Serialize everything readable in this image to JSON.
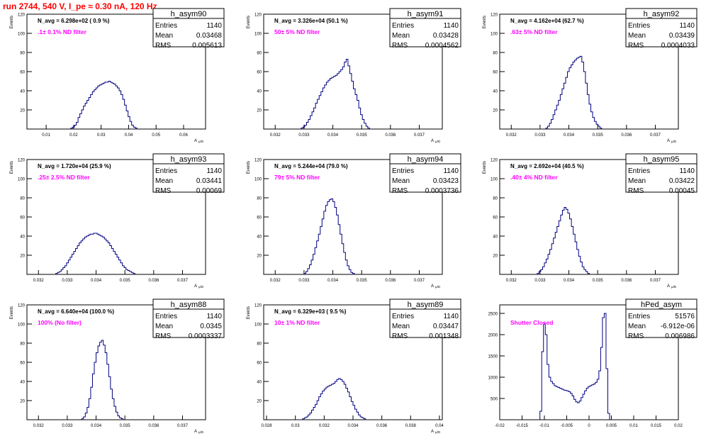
{
  "page_title": "run 2744,   540 V, I_pe ≈ 0.30 nA, 120 Hz",
  "colors": {
    "title": "#ff0000",
    "histogram": "#000080",
    "annotation": "#ff00ff",
    "axis": "#000000"
  },
  "chart_data": [
    {
      "type": "histogram",
      "ylabel": "Events",
      "xlabel": "A_{μ/D}",
      "ylim": [
        0,
        120
      ],
      "xlim": [
        0.003,
        0.068
      ],
      "yticks": [
        "20",
        "40",
        "60",
        "80",
        "100",
        "120"
      ],
      "xticks": [
        [
          "0.01",
          0.01
        ],
        [
          "0.02",
          0.02
        ],
        [
          "0.03",
          0.03
        ],
        [
          "0.04",
          0.04
        ],
        [
          "0.05",
          0.05
        ],
        [
          "0.06",
          0.06
        ]
      ],
      "navg": "N_avg = 6.298e+02 ( 0.9 %)",
      "annotation": ".1± 0.1% ND filter",
      "stats": {
        "name": "h_asym90",
        "rows": [
          [
            "Entries",
            "1140"
          ],
          [
            "Mean",
            "0.03468"
          ],
          [
            "RMS",
            "0.005613"
          ]
        ]
      },
      "bins": {
        "start": 0.019,
        "width": 0.00065,
        "values": [
          1,
          2,
          4,
          7,
          12,
          16,
          20,
          24,
          27,
          30,
          33,
          36,
          39,
          41,
          43,
          45,
          46,
          47,
          48,
          49,
          49,
          50,
          49,
          48,
          47,
          45,
          43,
          40,
          36,
          31,
          25,
          19,
          13,
          8,
          4,
          2,
          1
        ]
      }
    },
    {
      "type": "histogram",
      "ylabel": "Events",
      "xlabel": "A_{μ/D}",
      "ylim": [
        0,
        120
      ],
      "xlim": [
        0.0316,
        0.0378
      ],
      "yticks": [
        "20",
        "40",
        "60",
        "80",
        "100",
        "120"
      ],
      "xticks": [
        [
          "0.032",
          0.032
        ],
        [
          "0.033",
          0.033
        ],
        [
          "0.034",
          0.034
        ],
        [
          "0.035",
          0.035
        ],
        [
          "0.036",
          0.036
        ],
        [
          "0.037",
          0.037
        ]
      ],
      "navg": "N_avg = 3.326e+04 (50.1 %)",
      "annotation": "50± 5% ND filter",
      "stats": {
        "name": "h_asym91",
        "rows": [
          [
            "Entries",
            "1140"
          ],
          [
            "Mean",
            "0.03428"
          ],
          [
            "RMS",
            "0.0004562"
          ]
        ]
      },
      "bins": {
        "start": 0.0329,
        "width": 6.25e-05,
        "values": [
          1,
          2,
          4,
          7,
          10,
          14,
          18,
          22,
          27,
          31,
          35,
          39,
          43,
          46,
          49,
          51,
          53,
          54,
          55,
          56,
          58,
          60,
          62,
          65,
          70,
          73,
          66,
          58,
          50,
          42,
          36,
          30,
          22,
          15,
          10,
          6,
          3,
          1
        ]
      }
    },
    {
      "type": "histogram",
      "ylabel": "Events",
      "xlabel": "A_{μ/D}",
      "ylim": [
        0,
        120
      ],
      "xlim": [
        0.0316,
        0.0378
      ],
      "yticks": [
        "20",
        "40",
        "60",
        "80",
        "100",
        "120"
      ],
      "xticks": [
        [
          "0.032",
          0.032
        ],
        [
          "0.033",
          0.033
        ],
        [
          "0.034",
          0.034
        ],
        [
          "0.035",
          0.035
        ],
        [
          "0.036",
          0.036
        ],
        [
          "0.037",
          0.037
        ]
      ],
      "navg": "N_avg = 4.162e+04 (62.7 %)",
      "annotation": ".63± 5% ND filter",
      "stats": {
        "name": "h_asym92",
        "rows": [
          [
            "Entries",
            "1140"
          ],
          [
            "Mean",
            "0.03439"
          ],
          [
            "RMS",
            "0.0004033"
          ]
        ]
      },
      "bins": {
        "start": 0.0332,
        "width": 6.25e-05,
        "values": [
          1,
          3,
          6,
          10,
          15,
          20,
          25,
          30,
          36,
          42,
          48,
          54,
          60,
          64,
          67,
          70,
          72,
          74,
          75,
          76,
          70,
          60,
          48,
          36,
          26,
          18,
          12,
          8,
          5,
          3,
          1
        ]
      }
    },
    {
      "type": "histogram",
      "ylabel": "Events",
      "xlabel": "A_{μ/D}",
      "ylim": [
        0,
        120
      ],
      "xlim": [
        0.0316,
        0.0378
      ],
      "yticks": [
        "20",
        "40",
        "60",
        "80",
        "100",
        "120"
      ],
      "xticks": [
        [
          "0.032",
          0.032
        ],
        [
          "0.033",
          0.033
        ],
        [
          "0.034",
          0.034
        ],
        [
          "0.035",
          0.035
        ],
        [
          "0.036",
          0.036
        ],
        [
          "0.037",
          0.037
        ]
      ],
      "navg": "N_avg = 1.720e+04 (25.9 %)",
      "annotation": ".25± 2.5% ND filter",
      "stats": {
        "name": "h_asym93",
        "rows": [
          [
            "Entries",
            "1140"
          ],
          [
            "Mean",
            "0.03441"
          ],
          [
            "RMS",
            "0.00069"
          ]
        ]
      },
      "bins": {
        "start": 0.0326,
        "width": 6.25e-05,
        "values": [
          1,
          2,
          3,
          5,
          7,
          9,
          12,
          15,
          18,
          21,
          24,
          27,
          30,
          33,
          35,
          37,
          39,
          40,
          41,
          42,
          42,
          43,
          43,
          42,
          41,
          40,
          39,
          37,
          35,
          33,
          30,
          27,
          24,
          21,
          18,
          15,
          12,
          9,
          7,
          5,
          4,
          3,
          2,
          1
        ]
      }
    },
    {
      "type": "histogram",
      "ylabel": "Events",
      "xlabel": "A_{μ/D}",
      "ylim": [
        0,
        120
      ],
      "xlim": [
        0.0316,
        0.0378
      ],
      "yticks": [
        "20",
        "40",
        "60",
        "80",
        "100",
        "120"
      ],
      "xticks": [
        [
          "0.032",
          0.032
        ],
        [
          "0.033",
          0.033
        ],
        [
          "0.034",
          0.034
        ],
        [
          "0.035",
          0.035
        ],
        [
          "0.036",
          0.036
        ],
        [
          "0.037",
          0.037
        ]
      ],
      "navg": "N_avg = 5.244e+04 (79.0 %)",
      "annotation": "79± 5% ND filter",
      "stats": {
        "name": "h_asym94",
        "rows": [
          [
            "Entries",
            "1140"
          ],
          [
            "Mean",
            "0.03423"
          ],
          [
            "RMS",
            "0.0003736"
          ]
        ]
      },
      "bins": {
        "start": 0.033,
        "width": 6.25e-05,
        "values": [
          1,
          3,
          6,
          10,
          15,
          21,
          28,
          35,
          42,
          50,
          58,
          66,
          72,
          76,
          78,
          79,
          76,
          70,
          62,
          52,
          42,
          32,
          23,
          15,
          9,
          5,
          2,
          1
        ]
      }
    },
    {
      "type": "histogram",
      "ylabel": "Events",
      "xlabel": "A_{μ/D}",
      "ylim": [
        0,
        120
      ],
      "xlim": [
        0.0316,
        0.0378
      ],
      "yticks": [
        "20",
        "40",
        "60",
        "80",
        "100",
        "120"
      ],
      "xticks": [
        [
          "0.032",
          0.032
        ],
        [
          "0.033",
          0.033
        ],
        [
          "0.034",
          0.034
        ],
        [
          "0.035",
          0.035
        ],
        [
          "0.036",
          0.036
        ],
        [
          "0.037",
          0.037
        ]
      ],
      "navg": "N_avg = 2.692e+04 (40.5 %)",
      "annotation": ".40± 4% ND filter",
      "stats": {
        "name": "h_asym95",
        "rows": [
          [
            "Entries",
            "1140"
          ],
          [
            "Mean",
            "0.03422"
          ],
          [
            "RMS",
            "0.00045"
          ]
        ]
      },
      "bins": {
        "start": 0.0329,
        "width": 6.25e-05,
        "values": [
          1,
          3,
          5,
          8,
          12,
          16,
          21,
          26,
          32,
          38,
          44,
          50,
          56,
          62,
          67,
          70,
          68,
          64,
          58,
          50,
          42,
          34,
          26,
          19,
          13,
          8,
          5,
          3,
          1
        ]
      }
    },
    {
      "type": "histogram",
      "ylabel": "Events",
      "xlabel": "A_{μ/D}",
      "ylim": [
        0,
        120
      ],
      "xlim": [
        0.0316,
        0.0378
      ],
      "yticks": [
        "20",
        "40",
        "60",
        "80",
        "100",
        "120"
      ],
      "xticks": [
        [
          "0.032",
          0.032
        ],
        [
          "0.033",
          0.033
        ],
        [
          "0.034",
          0.034
        ],
        [
          "0.035",
          0.035
        ],
        [
          "0.036",
          0.036
        ],
        [
          "0.037",
          0.037
        ]
      ],
      "navg": "N_avg = 6.640e+04 (100.0 %)",
      "annotation": "100% (No filter)",
      "stats": {
        "name": "h_asym88",
        "rows": [
          [
            "Entries",
            "1140"
          ],
          [
            "Mean",
            "0.0345"
          ],
          [
            "RMS",
            "0.0003337"
          ]
        ]
      },
      "bins": {
        "start": 0.0335,
        "width": 6.25e-05,
        "values": [
          1,
          3,
          7,
          13,
          22,
          34,
          48,
          60,
          70,
          77,
          81,
          83,
          78,
          70,
          58,
          45,
          32,
          22,
          14,
          8,
          4,
          2,
          1
        ]
      }
    },
    {
      "type": "histogram",
      "ylabel": "Events",
      "xlabel": "A_{μ/D}",
      "ylim": [
        0,
        120
      ],
      "xlim": [
        0.0278,
        0.0402
      ],
      "yticks": [
        "20",
        "40",
        "60",
        "80",
        "100",
        "120"
      ],
      "xticks": [
        [
          "0.028",
          0.028
        ],
        [
          "0.03",
          0.03
        ],
        [
          "0.032",
          0.032
        ],
        [
          "0.034",
          0.034
        ],
        [
          "0.036",
          0.036
        ],
        [
          "0.038",
          0.038
        ],
        [
          "0.04",
          0.04
        ]
      ],
      "navg": "N_avg = 6.329e+03 ( 9.5 %)",
      "annotation": "10± 1% ND filter",
      "stats": {
        "name": "h_asym89",
        "rows": [
          [
            "Entries",
            "1140"
          ],
          [
            "Mean",
            "0.03447"
          ],
          [
            "RMS",
            "0.001348"
          ]
        ]
      },
      "bins": {
        "start": 0.0305,
        "width": 0.000125,
        "values": [
          1,
          2,
          3,
          5,
          7,
          10,
          13,
          16,
          20,
          24,
          27,
          30,
          32,
          34,
          35,
          36,
          37,
          38,
          40,
          42,
          43,
          42,
          40,
          37,
          33,
          29,
          24,
          19,
          15,
          11,
          8,
          5,
          3,
          2,
          1
        ]
      }
    },
    {
      "type": "histogram",
      "ylabel": "",
      "xlabel": "",
      "ylim": [
        0,
        2700
      ],
      "xlim": [
        -0.02,
        0.02
      ],
      "yticks": [
        "500",
        "1000",
        "1500",
        "2000",
        "2500"
      ],
      "xticks": [
        [
          "-0.02",
          -0.02
        ],
        [
          "-0.015",
          -0.015
        ],
        [
          "-0.01",
          -0.01
        ],
        [
          "-0.005",
          -0.005
        ],
        [
          "0",
          0
        ],
        [
          "0.005",
          0.005
        ],
        [
          "0.01",
          0.01
        ],
        [
          "0.015",
          0.015
        ],
        [
          "0.02",
          0.02
        ]
      ],
      "navg": "",
      "annotation": "Shutter Closed",
      "stats": {
        "name": "hPed_asym",
        "rows": [
          [
            "Entries",
            "51576"
          ],
          [
            "Mean",
            "-6.912e-06"
          ],
          [
            "RMS",
            "0.006986"
          ]
        ]
      },
      "bins": {
        "start": -0.011,
        "width": 0.0004,
        "values": [
          200,
          1600,
          2250,
          2000,
          1300,
          1000,
          900,
          850,
          800,
          780,
          760,
          740,
          720,
          700,
          690,
          680,
          660,
          620,
          560,
          480,
          420,
          400,
          440,
          520,
          600,
          680,
          740,
          780,
          800,
          820,
          840,
          880,
          950,
          1150,
          1700,
          2400,
          2500,
          1200,
          150
        ]
      }
    }
  ]
}
